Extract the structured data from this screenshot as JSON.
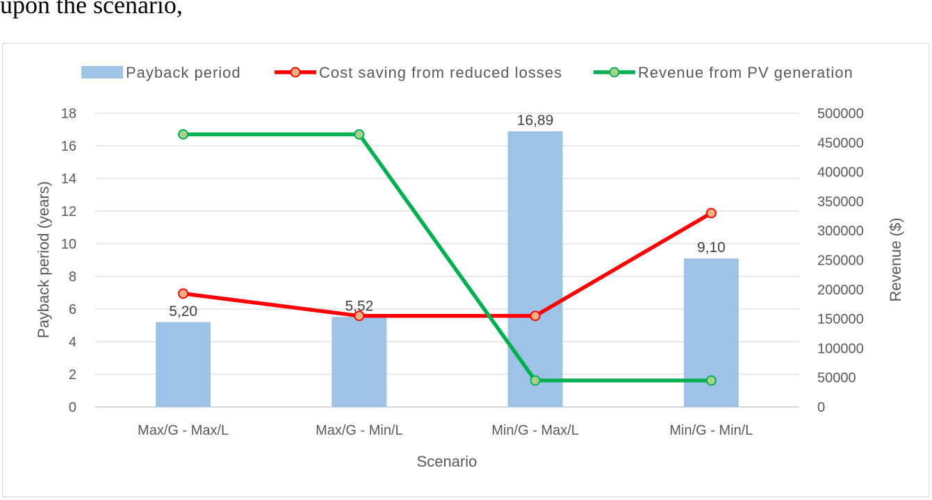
{
  "top_text": "upon the scenario,",
  "chart_data": {
    "type": "bar",
    "categories": [
      "Max/G - Max/L",
      "Max/G - Min/L",
      "Min/G - Max/L",
      "Min/G - Min/L"
    ],
    "series": [
      {
        "name": "Payback period",
        "type": "bar",
        "axis": "left",
        "values": [
          5.2,
          5.52,
          16.89,
          9.1
        ],
        "labels": [
          "5,20",
          "5,52",
          "16,89",
          "9,10"
        ],
        "color": "#9dc3e6"
      },
      {
        "name": "Cost saving from reduced losses",
        "type": "line",
        "axis": "right",
        "values": [
          193000,
          155000,
          155000,
          330000
        ],
        "color": "#ff0000",
        "marker_color": "#f4b183"
      },
      {
        "name": "Revenue from PV generation",
        "type": "line",
        "axis": "right",
        "values": [
          464000,
          464000,
          45000,
          45000
        ],
        "color": "#00b050",
        "marker_color": "#a9d18e"
      }
    ],
    "xlabel": "Scenario",
    "ylabel": "Payback period (years)",
    "y2label": "Revenue ($)",
    "ylim": [
      0,
      18
    ],
    "y2lim": [
      0,
      500000
    ],
    "yticks": [
      "0",
      "2",
      "4",
      "6",
      "8",
      "10",
      "12",
      "14",
      "16",
      "18"
    ],
    "y2ticks": [
      "0",
      "50000",
      "100000",
      "150000",
      "200000",
      "250000",
      "300000",
      "350000",
      "400000",
      "450000",
      "500000"
    ],
    "grid": true,
    "legend_position": "top"
  }
}
